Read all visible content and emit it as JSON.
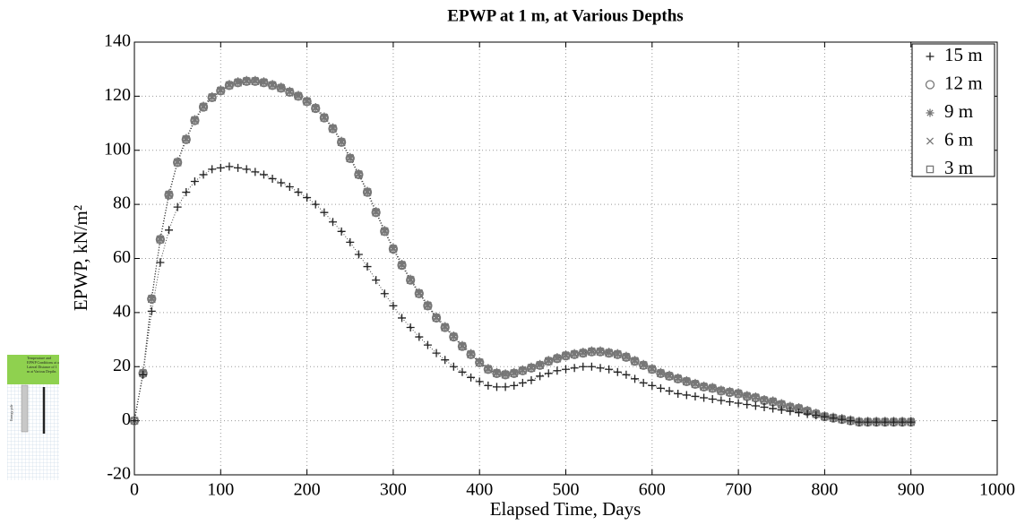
{
  "chart_data": {
    "type": "scatter",
    "title": "EPWP at 1 m, at Various Depths",
    "xlabel": "Elapsed Time, Days",
    "ylabel": "EPWP, kN/m²",
    "xlim": [
      0,
      1000
    ],
    "xticks": [
      0,
      100,
      200,
      300,
      400,
      500,
      600,
      700,
      800,
      900,
      1000
    ],
    "ylim": [
      -20,
      140
    ],
    "yticks": [
      -20,
      0,
      20,
      40,
      60,
      80,
      100,
      120,
      140
    ],
    "grid": true,
    "legend": "upper-right",
    "x": [
      0,
      10,
      20,
      30,
      40,
      50,
      60,
      70,
      80,
      90,
      100,
      110,
      120,
      130,
      140,
      150,
      160,
      170,
      180,
      190,
      200,
      210,
      220,
      230,
      240,
      250,
      260,
      270,
      280,
      290,
      300,
      310,
      320,
      330,
      340,
      350,
      360,
      370,
      380,
      390,
      400,
      410,
      420,
      430,
      440,
      450,
      460,
      470,
      480,
      490,
      500,
      510,
      520,
      530,
      540,
      550,
      560,
      570,
      580,
      590,
      600,
      610,
      620,
      630,
      640,
      650,
      660,
      670,
      680,
      690,
      700,
      710,
      720,
      730,
      740,
      750,
      760,
      770,
      780,
      790,
      800,
      810,
      820,
      830,
      840,
      850,
      860,
      870,
      880,
      890,
      900
    ],
    "series": [
      {
        "name": "15 m",
        "marker": "plus",
        "color": "#222222",
        "values": [
          0,
          17,
          40.5,
          58.5,
          70.5,
          79,
          84.5,
          88.5,
          91,
          93,
          93.5,
          94,
          93.5,
          93,
          92,
          91,
          89.5,
          88,
          86.5,
          84.5,
          82.5,
          80,
          77,
          73.5,
          70,
          66,
          61.5,
          57,
          52,
          47,
          42.5,
          38,
          34.5,
          31,
          28,
          25,
          22.5,
          20,
          18,
          16,
          14.5,
          13,
          12.5,
          12.5,
          13,
          14,
          15,
          16.5,
          17.5,
          18.5,
          19,
          19.5,
          20,
          20,
          19.5,
          19,
          18,
          17,
          15.5,
          14,
          13,
          12,
          11,
          10,
          9.5,
          9,
          8.5,
          8,
          7.5,
          7,
          6.5,
          6,
          5.5,
          5,
          4.5,
          4,
          3.5,
          3,
          2.5,
          2,
          1.5,
          1,
          0.5,
          0,
          -0.5,
          -0.5,
          -0.5,
          -0.5,
          -0.5,
          -0.5,
          -0.5
        ]
      },
      {
        "name": "12 m",
        "marker": "circle",
        "color": "#777777",
        "values": [
          0,
          17.5,
          45,
          67,
          83.5,
          95.5,
          104,
          111,
          116,
          119.5,
          122,
          124,
          125,
          125.5,
          125.5,
          125,
          124,
          123,
          121.5,
          120,
          118,
          115.5,
          112,
          108,
          103,
          97,
          91,
          84.5,
          77,
          70,
          63.5,
          57.5,
          52,
          47,
          42.5,
          38,
          34.5,
          31,
          27.5,
          24.5,
          21.5,
          19,
          17.5,
          17,
          17.5,
          18.5,
          19.5,
          20.5,
          22,
          23,
          24,
          24.5,
          25,
          25.5,
          25.5,
          25,
          24.5,
          23.5,
          22,
          20.5,
          19,
          17.5,
          16.5,
          15.5,
          14.5,
          13.5,
          12.5,
          12,
          11,
          10.5,
          10,
          9,
          8.5,
          7.5,
          7,
          6,
          5,
          4.5,
          3.5,
          2.5,
          1.5,
          1,
          0.5,
          0,
          -0.5,
          -0.5,
          -0.5,
          -0.5,
          -0.5,
          -0.5,
          -0.5
        ]
      },
      {
        "name": "9 m",
        "marker": "star",
        "color": "#777777",
        "values": [
          0,
          18,
          45.5,
          67.5,
          84,
          96,
          104.5,
          111.5,
          116.5,
          120,
          122.5,
          124.5,
          125.5,
          126,
          126,
          125.5,
          124.5,
          123.5,
          122,
          120.5,
          118.5,
          116,
          112.5,
          108.5,
          103.5,
          97.5,
          91.5,
          85,
          77.5,
          70.5,
          64,
          58,
          52.5,
          47.5,
          43,
          38.5,
          35,
          31.5,
          28,
          25,
          22,
          19.5,
          18,
          17.5,
          18,
          19,
          20,
          21,
          22.5,
          23.5,
          24.5,
          25,
          25.5,
          26,
          26,
          25.5,
          25,
          24,
          22.5,
          21,
          19.5,
          18,
          17,
          16,
          15,
          14,
          13,
          12.5,
          11.5,
          11,
          10.5,
          9.5,
          9,
          8,
          7.5,
          6.5,
          5.5,
          5,
          4,
          3,
          2,
          1.5,
          1,
          0.5,
          0,
          0,
          0,
          0,
          0,
          0,
          0
        ]
      },
      {
        "name": "6 m",
        "marker": "cross",
        "color": "#777777",
        "values": [
          0,
          17.5,
          45,
          67,
          83.5,
          95.5,
          104,
          111,
          116,
          119.5,
          122,
          124,
          125,
          125.5,
          125.5,
          125,
          124,
          123,
          121.5,
          120,
          118,
          115.5,
          112,
          108,
          103,
          97,
          91,
          84.5,
          77,
          70,
          63.5,
          57.5,
          52,
          47,
          42.5,
          38,
          34.5,
          31,
          27.5,
          24.5,
          21.5,
          19,
          17.5,
          17,
          17.5,
          18.5,
          19.5,
          20.5,
          22,
          23,
          24,
          24.5,
          25,
          25.5,
          25.5,
          25,
          24.5,
          23.5,
          22,
          20.5,
          19,
          17.5,
          16.5,
          15.5,
          14.5,
          13.5,
          12.5,
          12,
          11,
          10.5,
          10,
          9,
          8.5,
          7.5,
          7,
          6,
          5,
          4.5,
          3.5,
          2.5,
          1.5,
          1,
          0.5,
          0,
          -0.5,
          -0.5,
          -0.5,
          -0.5,
          -0.5,
          -0.5,
          -0.5
        ]
      },
      {
        "name": "3 m",
        "marker": "square",
        "color": "#777777",
        "values": [
          0,
          17.5,
          45,
          67,
          83.5,
          95.5,
          104,
          111,
          116,
          119.5,
          122,
          124,
          125,
          125.5,
          125.5,
          125,
          124,
          123,
          121.5,
          120,
          118,
          115.5,
          112,
          108,
          103,
          97,
          91,
          84.5,
          77,
          70,
          63.5,
          57.5,
          52,
          47,
          42.5,
          38,
          34.5,
          31,
          27.5,
          24.5,
          21.5,
          19,
          17.5,
          17,
          17.5,
          18.5,
          19.5,
          20.5,
          22,
          23,
          24,
          24.5,
          25,
          25.5,
          25.5,
          25,
          24.5,
          23.5,
          22,
          20.5,
          19,
          17.5,
          16.5,
          15.5,
          14.5,
          13.5,
          12.5,
          12,
          11,
          10.5,
          10,
          9,
          8.5,
          7.5,
          7,
          6,
          5,
          4.5,
          3.5,
          2.5,
          1.5,
          1,
          0.5,
          0,
          -0.5,
          -0.5,
          -0.5,
          -0.5,
          -0.5,
          -0.5,
          -0.5
        ]
      }
    ]
  },
  "inset": {
    "caption": "Temperature and EPWP Conditions at a Lateral Distance of 1 m at Various Depths",
    "pile_label": "Energy pile"
  }
}
